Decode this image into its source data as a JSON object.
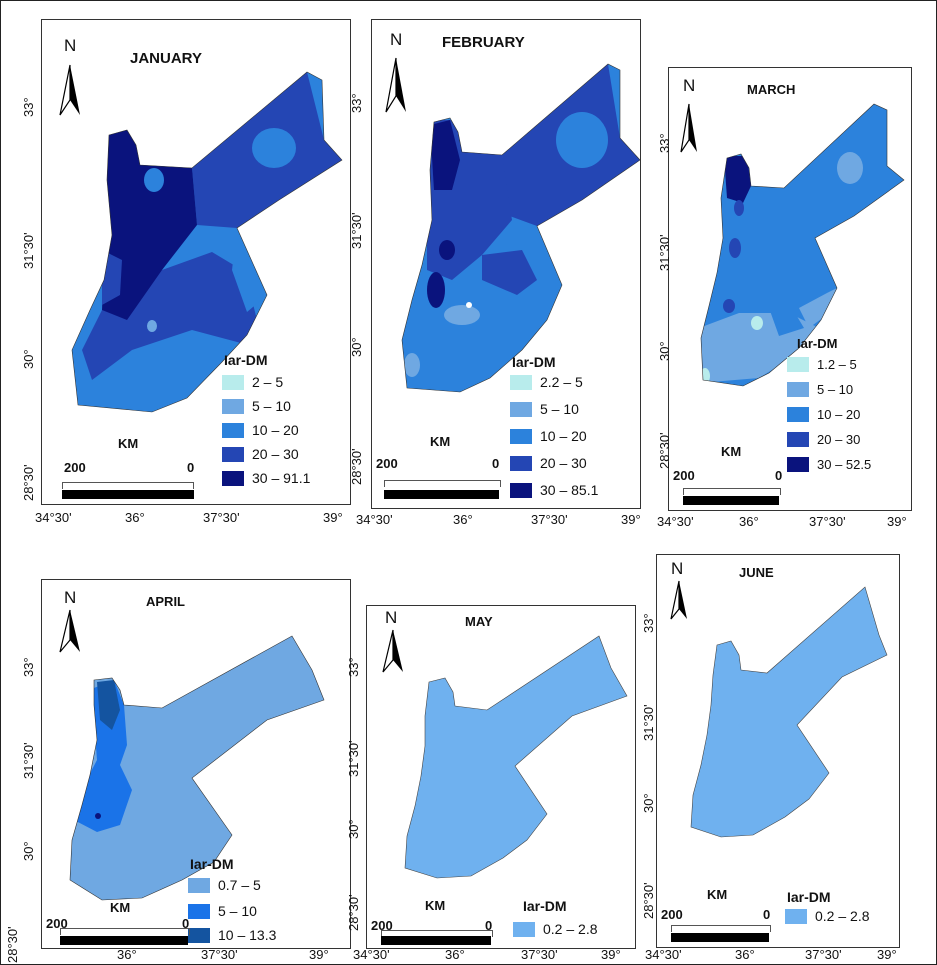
{
  "panels": [
    {
      "month": "JANUARY",
      "legend_title": "Iar-DM",
      "legend": [
        {
          "label": "2 – 5",
          "color": "#b8ecec"
        },
        {
          "label": "5 – 10",
          "color": "#6fa8e2"
        },
        {
          "label": "10 – 20",
          "color": "#2c82dc"
        },
        {
          "label": "20 – 30",
          "color": "#2446b4"
        },
        {
          "label": "30 – 91.1",
          "color": "#0a137d"
        }
      ],
      "scale_unit": "KM",
      "scale_left": "200",
      "scale_right": "0",
      "lat_labels": [
        "33°",
        "31°30'",
        "30°",
        "28°30'"
      ],
      "lon_labels": [
        "34°30'",
        "36°",
        "37°30'",
        "39°"
      ]
    },
    {
      "month": "FEBRUARY",
      "legend_title": "Iar-DM",
      "legend": [
        {
          "label": "2.2 – 5",
          "color": "#b8ecec"
        },
        {
          "label": "5 – 10",
          "color": "#6fa8e2"
        },
        {
          "label": "10 – 20",
          "color": "#2c82dc"
        },
        {
          "label": "20 – 30",
          "color": "#2446b4"
        },
        {
          "label": "30 – 85.1",
          "color": "#0a137d"
        }
      ],
      "scale_unit": "KM",
      "scale_left": "200",
      "scale_right": "0",
      "lat_labels": [
        "33°",
        "31°30'",
        "30°",
        "28°30'"
      ],
      "lon_labels": [
        "34°30'",
        "36°",
        "37°30'",
        "39°"
      ]
    },
    {
      "month": "MARCH",
      "legend_title": "Iar-DM",
      "legend": [
        {
          "label": "1.2 – 5",
          "color": "#b8ecec"
        },
        {
          "label": "5 – 10",
          "color": "#6fa8e2"
        },
        {
          "label": "10 – 20",
          "color": "#2c82dc"
        },
        {
          "label": "20 – 30",
          "color": "#2446b4"
        },
        {
          "label": "30 – 52.5",
          "color": "#0a137d"
        }
      ],
      "scale_unit": "KM",
      "scale_left": "200",
      "scale_right": "0",
      "lat_labels": [
        "33°",
        "31°30'",
        "30°",
        "28°30'"
      ],
      "lon_labels": [
        "34°30'",
        "36°",
        "37°30'",
        "39°"
      ]
    },
    {
      "month": "APRIL",
      "legend_title": "Iar-DM",
      "legend": [
        {
          "label": "0.7 – 5",
          "color": "#6fa8e2"
        },
        {
          "label": "5 – 10",
          "color": "#1a73e8"
        },
        {
          "label": "10 – 13.3",
          "color": "#1454a0"
        }
      ],
      "scale_unit": "KM",
      "scale_left": "200",
      "scale_right": "0",
      "lat_labels": [
        "33°",
        "31°30'",
        "30°",
        "28°30'"
      ],
      "lon_labels": [
        "36°",
        "37°30'",
        "39°"
      ]
    },
    {
      "month": "MAY",
      "legend_title": "Iar-DM",
      "legend": [
        {
          "label": "0.2 – 2.8",
          "color": "#6fb1ef"
        }
      ],
      "scale_unit": "KM",
      "scale_left": "200",
      "scale_right": "0",
      "lat_labels": [
        "33°",
        "31°30'",
        "30°",
        "28°30'"
      ],
      "lon_labels": [
        "34°30'",
        "36°",
        "37°30'",
        "39°"
      ]
    },
    {
      "month": "JUNE",
      "legend_title": "Iar-DM",
      "legend": [
        {
          "label": "0.2 – 2.8",
          "color": "#6fb1ef"
        }
      ],
      "scale_unit": "KM",
      "scale_left": "200",
      "scale_right": "0",
      "lat_labels": [
        "33°",
        "31°30'",
        "30°",
        "28°30'"
      ],
      "lon_labels": [
        "34°30'",
        "36°",
        "37°30'",
        "39°"
      ]
    }
  ],
  "north_label": "N",
  "colors": {
    "c1": "#b8ecec",
    "c2": "#6fa8e2",
    "c3": "#2c82dc",
    "c4": "#2446b4",
    "c5": "#0a137d",
    "april_mid": "#1a73e8",
    "april_high": "#1454a0",
    "may_june": "#6fb1ef"
  }
}
